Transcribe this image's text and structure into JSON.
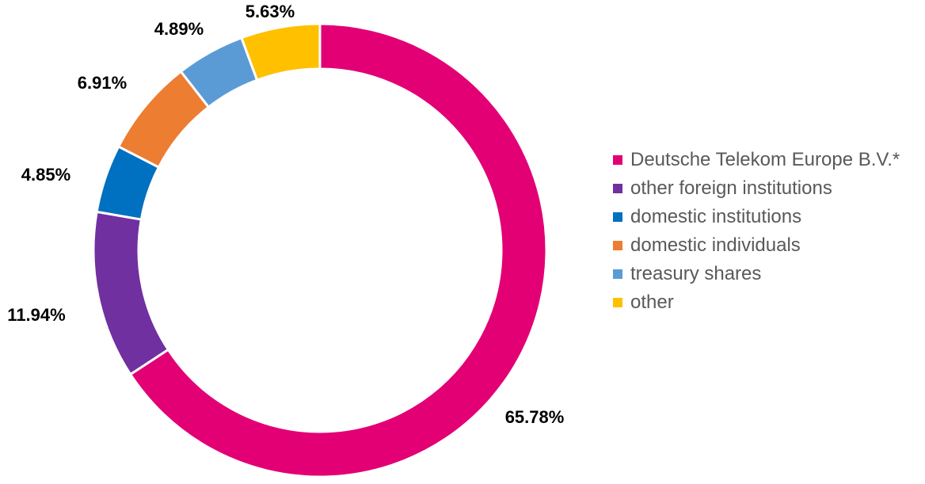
{
  "chart_data": {
    "type": "pie",
    "variant": "donut",
    "legend_position": "right",
    "series": [
      {
        "name": "Deutsche Telekom Europe B.V.*",
        "value": 65.78,
        "label": "65.78%",
        "color": "#E20074"
      },
      {
        "name": "other foreign institutions",
        "value": 11.94,
        "label": "11.94%",
        "color": "#7030A0"
      },
      {
        "name": "domestic institutions",
        "value": 4.85,
        "label": "4.85%",
        "color": "#0070C0"
      },
      {
        "name": "domestic individuals",
        "value": 6.91,
        "label": "6.91%",
        "color": "#ED7D31"
      },
      {
        "name": "treasury shares",
        "value": 4.89,
        "label": "4.89%",
        "color": "#5B9BD5"
      },
      {
        "name": "other",
        "value": 5.63,
        "label": "5.63%",
        "color": "#FFC000"
      }
    ]
  }
}
